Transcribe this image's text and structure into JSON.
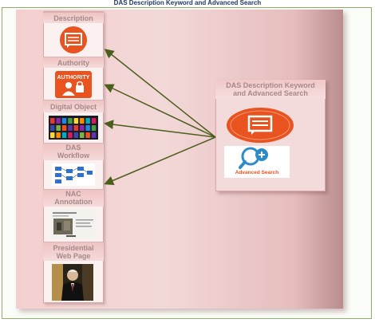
{
  "title": "DAS Description Keyword and Advanced Search",
  "sections": [
    {
      "label": "Description"
    },
    {
      "label": "Authority",
      "icon_text": "AUTHORITY"
    },
    {
      "label": "Digital Object"
    },
    {
      "label_line1": "DAS",
      "label_line2": "Workflow"
    },
    {
      "label_line1": "NAC",
      "label_line2": "Annotation"
    },
    {
      "label_line1": "Presidential",
      "label_line2": "Web Page"
    }
  ],
  "target": {
    "label_line1": "DAS Description Keyword",
    "label_line2": "and Advanced Search",
    "advanced_search_text": "Advanced Search"
  },
  "colors": {
    "accent_orange": "#e8531f",
    "arrow_green": "#4b5e1c",
    "search_blue": "#2e8bc9",
    "header_text": "#1f3864"
  }
}
